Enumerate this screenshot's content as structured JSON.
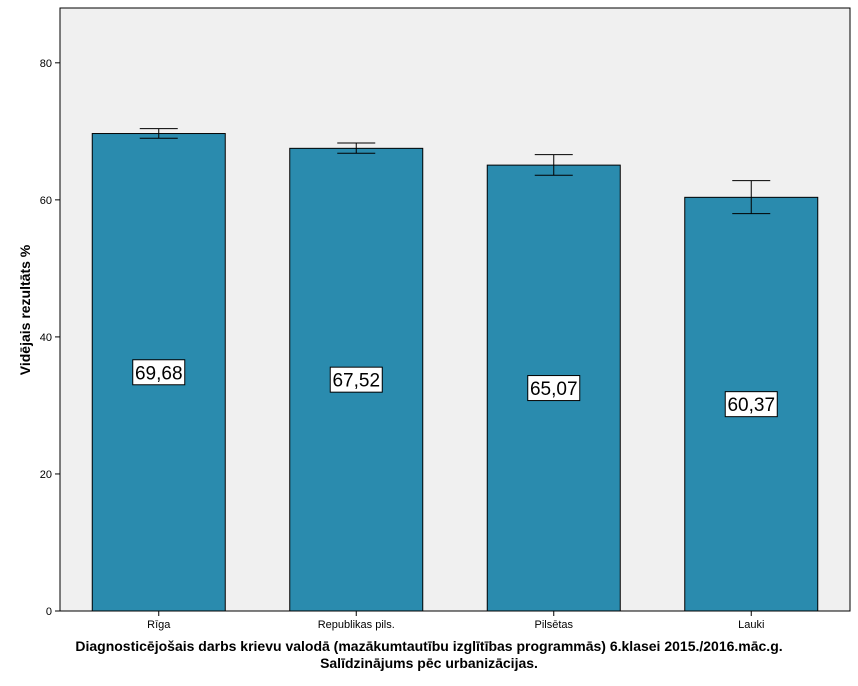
{
  "chart_data": {
    "type": "bar",
    "categories": [
      "Rīga",
      "Republikas pils.",
      "Pilsētas",
      "Lauki"
    ],
    "values": [
      69.68,
      67.52,
      65.07,
      60.37
    ],
    "data_labels": [
      "69,68",
      "67,52",
      "65,07",
      "60,37"
    ],
    "error_bars": [
      {
        "low": 69.0,
        "high": 70.4
      },
      {
        "low": 66.8,
        "high": 68.3
      },
      {
        "low": 63.6,
        "high": 66.6
      },
      {
        "low": 58.0,
        "high": 62.8
      }
    ],
    "ylabel": "Vidējais rezultāts %",
    "yticks": [
      0,
      20,
      40,
      60,
      80
    ],
    "ylim": [
      0,
      88
    ],
    "grid": false,
    "bar_color": "#2a8bae",
    "plot_background": "#f0f0f0",
    "caption_line1": "Diagnosticējošais darbs krievu valodā (mazākumtautību izglītības programmās) 6.klasei 2015./2016.māc.g.",
    "caption_line2": "Salīdzinājums pēc urbanizācijas."
  }
}
